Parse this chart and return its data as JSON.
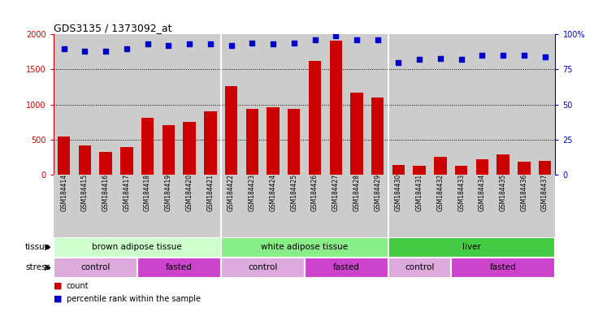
{
  "title": "GDS3135 / 1373092_at",
  "samples": [
    "GSM184414",
    "GSM184415",
    "GSM184416",
    "GSM184417",
    "GSM184418",
    "GSM184419",
    "GSM184420",
    "GSM184421",
    "GSM184422",
    "GSM184423",
    "GSM184424",
    "GSM184425",
    "GSM184426",
    "GSM184427",
    "GSM184428",
    "GSM184429",
    "GSM184430",
    "GSM184431",
    "GSM184432",
    "GSM184433",
    "GSM184434",
    "GSM184435",
    "GSM184436",
    "GSM184437"
  ],
  "counts": [
    540,
    415,
    320,
    395,
    810,
    710,
    755,
    905,
    1260,
    940,
    960,
    940,
    1620,
    1910,
    1170,
    1105,
    145,
    130,
    260,
    125,
    215,
    285,
    185,
    200
  ],
  "percentile": [
    90,
    88,
    88,
    90,
    93,
    92,
    93,
    93,
    92,
    94,
    93,
    94,
    96,
    99,
    96,
    96,
    80,
    82,
    83,
    82,
    85,
    85,
    85,
    84
  ],
  "bar_color": "#cc0000",
  "dot_color": "#0000cc",
  "ylim_left": [
    0,
    2000
  ],
  "ylim_right": [
    0,
    100
  ],
  "yticks_left": [
    0,
    500,
    1000,
    1500,
    2000
  ],
  "yticks_right": [
    0,
    25,
    50,
    75,
    100
  ],
  "grid_values": [
    500,
    1000,
    1500
  ],
  "tissue_groups": [
    {
      "label": "brown adipose tissue",
      "start": 0,
      "end": 8,
      "color": "#ccffcc"
    },
    {
      "label": "white adipose tissue",
      "start": 8,
      "end": 16,
      "color": "#88ee88"
    },
    {
      "label": "liver",
      "start": 16,
      "end": 24,
      "color": "#44cc44"
    }
  ],
  "stress_groups": [
    {
      "label": "control",
      "start": 0,
      "end": 4,
      "color": "#ddaadd"
    },
    {
      "label": "fasted",
      "start": 4,
      "end": 8,
      "color": "#cc44cc"
    },
    {
      "label": "control",
      "start": 8,
      "end": 12,
      "color": "#ddaadd"
    },
    {
      "label": "fasted",
      "start": 12,
      "end": 16,
      "color": "#cc44cc"
    },
    {
      "label": "control",
      "start": 16,
      "end": 19,
      "color": "#ddaadd"
    },
    {
      "label": "fasted",
      "start": 19,
      "end": 24,
      "color": "#cc44cc"
    }
  ],
  "xticklabel_bg": "#cccccc",
  "plot_bg_color": "#cccccc",
  "legend_count_color": "#cc0000",
  "legend_dot_color": "#0000cc"
}
